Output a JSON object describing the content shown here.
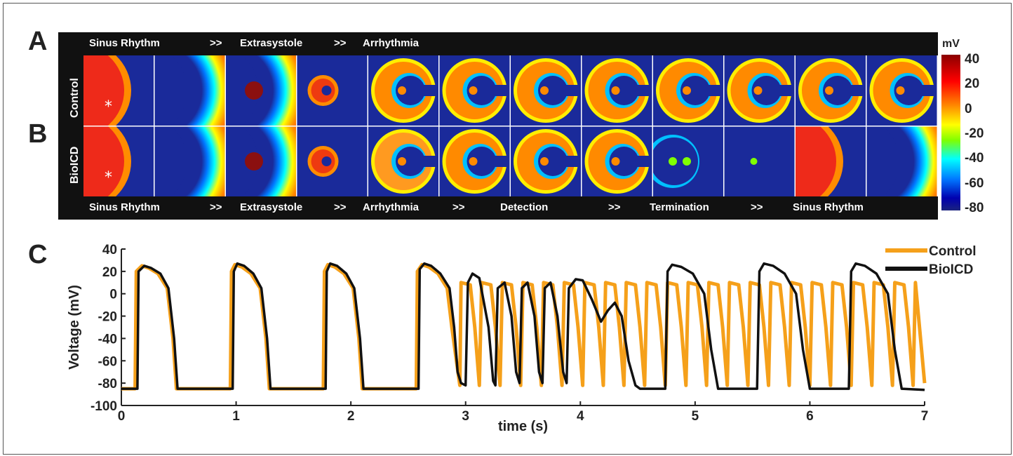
{
  "panels": {
    "a": "A",
    "b": "B",
    "c": "C"
  },
  "top_strip": {
    "stages": [
      {
        "label": "Sinus Rhythm"
      },
      {
        "label": ">>"
      },
      {
        "label": "Extrasystole"
      },
      {
        "label": ">>"
      },
      {
        "label": "Arrhythmia"
      }
    ]
  },
  "bottom_strip": {
    "stages": [
      {
        "label": "Sinus Rhythm"
      },
      {
        "label": ">>"
      },
      {
        "label": "Extrasystole"
      },
      {
        "label": ">>"
      },
      {
        "label": "Arrhythmia"
      },
      {
        "label": ">>"
      },
      {
        "label": "Detection"
      },
      {
        "label": ">>"
      },
      {
        "label": "Termination"
      },
      {
        "label": ">>"
      },
      {
        "label": "Sinus Rhythm"
      }
    ]
  },
  "rows": {
    "control": "Control",
    "biolcd": "BioICD"
  },
  "stimulus_marker": "*",
  "colorbar": {
    "unit": "mV",
    "ticks": [
      "40",
      "20",
      "0",
      "-20",
      "-40",
      "-60",
      "-80"
    ],
    "range": [
      -80,
      40
    ],
    "colors": [
      "#8b0000",
      "#ff0000",
      "#ff8c00",
      "#ffff00",
      "#7fff00",
      "#00ffff",
      "#0077ff",
      "#0000b0",
      "#1a237e"
    ]
  },
  "chart_data": {
    "type": "line",
    "xlabel": "time (s)",
    "ylabel": "Voltage (mV)",
    "xlim": [
      0,
      7
    ],
    "ylim": [
      -100,
      40
    ],
    "xticks": [
      "0",
      "1",
      "2",
      "3",
      "4",
      "5",
      "6",
      "7"
    ],
    "yticks": [
      "40",
      "20",
      "0",
      "-20",
      "-40",
      "-60",
      "-80",
      "-100"
    ],
    "legend_position": "top-right",
    "series": [
      {
        "name": "Control",
        "color": "#f5a01a",
        "x": [
          0.0,
          0.12,
          0.13,
          0.18,
          0.24,
          0.32,
          0.4,
          0.45,
          0.48,
          0.95,
          0.96,
          0.99,
          1.05,
          1.13,
          1.21,
          1.26,
          1.29,
          1.76,
          1.77,
          1.8,
          1.86,
          1.94,
          2.02,
          2.07,
          2.1,
          2.57,
          2.58,
          2.62,
          2.68,
          2.76,
          2.84,
          2.88,
          2.92,
          2.95,
          2.96,
          3.04,
          3.08,
          3.12,
          3.14,
          3.22,
          3.26,
          3.3,
          3.32,
          3.4,
          3.44,
          3.48,
          3.5,
          3.58,
          3.62,
          3.66,
          3.68,
          3.76,
          3.8,
          3.84,
          3.86,
          3.94,
          3.98,
          4.02,
          4.04,
          4.12,
          4.16,
          4.2,
          4.22,
          4.3,
          4.34,
          4.38,
          4.4,
          4.48,
          4.52,
          4.56,
          4.58,
          4.66,
          4.7,
          4.74,
          4.76,
          4.84,
          4.88,
          4.92,
          4.94,
          5.02,
          5.06,
          5.1,
          5.12,
          5.2,
          5.24,
          5.28,
          5.3,
          5.38,
          5.42,
          5.46,
          5.48,
          5.56,
          5.6,
          5.64,
          5.66,
          5.74,
          5.78,
          5.82,
          5.84,
          5.92,
          5.96,
          6.0,
          6.02,
          6.1,
          6.14,
          6.18,
          6.2,
          6.28,
          6.32,
          6.36,
          6.38,
          6.46,
          6.5,
          6.54,
          6.56,
          6.64,
          6.68,
          6.72,
          6.74,
          6.82,
          6.86,
          6.9,
          6.92,
          7.0
        ],
        "y": [
          -85,
          -85,
          20,
          25,
          23,
          18,
          5,
          -40,
          -85,
          -85,
          20,
          26,
          24,
          18,
          5,
          -40,
          -85,
          -85,
          20,
          26,
          24,
          18,
          5,
          -40,
          -85,
          -85,
          20,
          26,
          24,
          18,
          5,
          -30,
          -60,
          -82,
          10,
          8,
          -30,
          -82,
          10,
          8,
          -30,
          -82,
          10,
          8,
          -30,
          -82,
          10,
          8,
          -30,
          -82,
          10,
          8,
          -30,
          -82,
          10,
          8,
          -30,
          -82,
          10,
          8,
          -30,
          -82,
          10,
          8,
          -30,
          -82,
          10,
          8,
          -30,
          -82,
          10,
          8,
          -30,
          -82,
          10,
          8,
          -30,
          -82,
          10,
          8,
          -30,
          -82,
          10,
          8,
          -30,
          -82,
          10,
          8,
          -30,
          -82,
          10,
          8,
          -30,
          -82,
          10,
          8,
          -30,
          -82,
          10,
          8,
          -30,
          -82,
          10,
          8,
          -30,
          -82,
          10,
          8,
          -30,
          -82,
          10,
          8,
          -30,
          -82,
          10,
          8,
          -30,
          -82,
          10,
          8,
          -30,
          -82,
          10,
          -80
        ]
      },
      {
        "name": "BioICD",
        "color": "#111111",
        "x": [
          0.0,
          0.14,
          0.15,
          0.2,
          0.26,
          0.34,
          0.41,
          0.46,
          0.49,
          0.97,
          0.98,
          1.01,
          1.07,
          1.15,
          1.22,
          1.27,
          1.3,
          1.78,
          1.79,
          1.82,
          1.88,
          1.96,
          2.03,
          2.08,
          2.11,
          2.59,
          2.6,
          2.64,
          2.7,
          2.78,
          2.86,
          2.9,
          2.93,
          2.96,
          3.0,
          3.02,
          3.06,
          3.12,
          3.2,
          3.24,
          3.26,
          3.28,
          3.34,
          3.4,
          3.44,
          3.47,
          3.49,
          3.54,
          3.6,
          3.64,
          3.67,
          3.69,
          3.74,
          3.8,
          3.85,
          3.88,
          3.9,
          3.96,
          4.02,
          4.1,
          4.18,
          4.24,
          4.3,
          4.36,
          4.42,
          4.48,
          4.52,
          4.65,
          4.74,
          4.76,
          4.8,
          4.88,
          4.98,
          5.08,
          5.14,
          5.2,
          5.54,
          5.56,
          5.6,
          5.68,
          5.78,
          5.88,
          5.94,
          6.0,
          6.34,
          6.36,
          6.4,
          6.48,
          6.58,
          6.68,
          6.74,
          6.8,
          7.0
        ],
        "y": [
          -85,
          -85,
          20,
          25,
          23,
          18,
          5,
          -40,
          -85,
          -85,
          20,
          27,
          25,
          18,
          5,
          -40,
          -85,
          -85,
          20,
          27,
          25,
          18,
          5,
          -40,
          -85,
          -85,
          22,
          27,
          25,
          18,
          5,
          -30,
          -70,
          -80,
          -82,
          10,
          18,
          14,
          -30,
          -78,
          -82,
          5,
          10,
          -20,
          -70,
          -80,
          5,
          10,
          -20,
          -70,
          -80,
          5,
          10,
          -20,
          -70,
          -80,
          5,
          13,
          12,
          -5,
          -25,
          -15,
          -8,
          -20,
          -60,
          -82,
          -85,
          -85,
          -85,
          20,
          26,
          24,
          18,
          0,
          -50,
          -85,
          -85,
          20,
          27,
          25,
          18,
          0,
          -50,
          -85,
          -85,
          20,
          27,
          25,
          18,
          0,
          -50,
          -85,
          -86
        ]
      }
    ]
  }
}
